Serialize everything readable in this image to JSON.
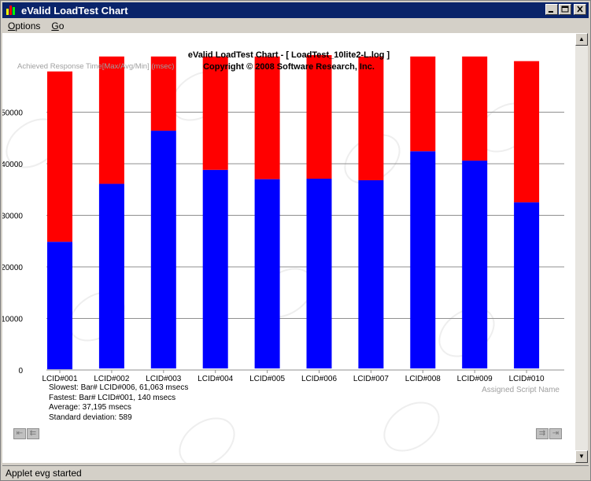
{
  "window": {
    "title": "eValid LoadTest Chart",
    "status": "Applet evg started"
  },
  "menu": {
    "options": "Options",
    "options_key": "O",
    "options_rest": "ptions",
    "go": "Go",
    "go_key": "G",
    "go_rest": "o"
  },
  "colors": {
    "fast_series": "#0000ff",
    "slow_series": "#ff0000",
    "grid": "#909090",
    "title_bar": "#0a246a"
  },
  "stats": {
    "slowest": "Slowest: Bar# LCID#006, 61,063 msecs",
    "fastest": "Fastest: Bar# LCID#001, 140 msecs",
    "average": "Average: 37,195 msecs",
    "stddev": "Standard deviation: 589"
  },
  "chart_data": {
    "type": "bar",
    "title": "eValid LoadTest Chart - [ LoadTest_10lite2-L.log ]",
    "subtitle": "Copyright © 2008 Software Research, Inc.",
    "ylabel": "Achieved Response Time[Max/Avg/Min] (msec)",
    "xlabel": "Assigned Script Name",
    "ylim": [
      0,
      60000
    ],
    "yticks": [
      0,
      10000,
      20000,
      30000,
      40000,
      50000
    ],
    "categories": [
      "LCID#001",
      "LCID#002",
      "LCID#003",
      "LCID#004",
      "LCID#005",
      "LCID#006",
      "LCID#007",
      "LCID#008",
      "LCID#009",
      "LCID#010"
    ],
    "series": [
      {
        "name": "Min",
        "color": "#0000ff",
        "values": [
          140,
          300,
          300,
          300,
          300,
          300,
          300,
          300,
          300,
          300
        ]
      },
      {
        "name": "Avg",
        "color": "#0000ff",
        "values": [
          24850,
          36100,
          46400,
          38800,
          37000,
          37100,
          36800,
          42400,
          40600,
          32500
        ]
      },
      {
        "name": "Max",
        "color": "#ff0000",
        "values": [
          57900,
          60800,
          60800,
          60800,
          60800,
          61063,
          60800,
          60800,
          60800,
          59900
        ]
      }
    ]
  }
}
